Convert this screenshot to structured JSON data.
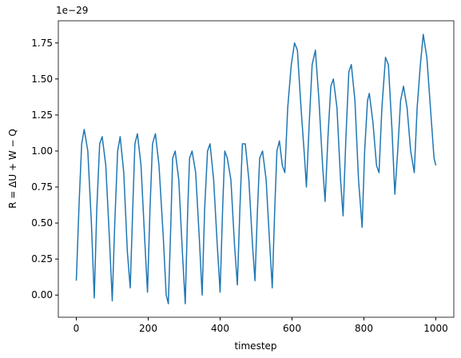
{
  "chart_data": {
    "type": "line",
    "x_label": "timestep",
    "y_label": "R = ΔU + W − Q",
    "offset_text": "1e−29",
    "xlim": [
      -50,
      1050
    ],
    "ylim": [
      -0.154,
      1.904
    ],
    "xticks": [
      0,
      200,
      400,
      600,
      800,
      1000
    ],
    "yticks": [
      {
        "value": 0,
        "label": "0.00"
      },
      {
        "value": 0.25,
        "label": "0.25"
      },
      {
        "value": 0.5,
        "label": "0.50"
      },
      {
        "value": 0.75,
        "label": "0.75"
      },
      {
        "value": 1,
        "label": "1.00"
      },
      {
        "value": 1.25,
        "label": "1.25"
      },
      {
        "value": 1.5,
        "label": "1.50"
      },
      {
        "value": 1.75,
        "label": "1.75"
      }
    ],
    "x": [
      0,
      8,
      15,
      22,
      32,
      42,
      50,
      57,
      65,
      72,
      82,
      92,
      100,
      107,
      115,
      122,
      132,
      142,
      150,
      157,
      163,
      170,
      180,
      190,
      198,
      205,
      212,
      220,
      230,
      242,
      250,
      256,
      263,
      268,
      275,
      285,
      295,
      303,
      310,
      315,
      322,
      332,
      342,
      350,
      357,
      365,
      372,
      382,
      392,
      400,
      407,
      413,
      420,
      430,
      440,
      448,
      455,
      462,
      470,
      480,
      490,
      497,
      504,
      510,
      518,
      528,
      538,
      545,
      552,
      558,
      565,
      573,
      580,
      588,
      598,
      607,
      615,
      625,
      635,
      640,
      648,
      656,
      665,
      675,
      685,
      692,
      700,
      708,
      715,
      725,
      735,
      742,
      750,
      758,
      765,
      775,
      785,
      795,
      802,
      810,
      815,
      825,
      835,
      842,
      850,
      860,
      868,
      878,
      886,
      894,
      902,
      910,
      920,
      930,
      940,
      948,
      957,
      965,
      975,
      985,
      995,
      1000
    ],
    "series": [
      {
        "color": "#1f77b4",
        "values": [
          0.1,
          0.65,
          1.05,
          1.15,
          1.0,
          0.5,
          -0.02,
          0.6,
          1.05,
          1.1,
          0.9,
          0.4,
          -0.04,
          0.5,
          1.0,
          1.1,
          0.85,
          0.3,
          0.05,
          0.6,
          1.05,
          1.12,
          0.9,
          0.4,
          0.02,
          0.6,
          1.05,
          1.12,
          0.9,
          0.4,
          0.0,
          -0.06,
          0.5,
          0.95,
          1.0,
          0.8,
          0.3,
          -0.06,
          0.6,
          0.95,
          1.0,
          0.85,
          0.4,
          0.0,
          0.6,
          1.0,
          1.05,
          0.8,
          0.35,
          0.02,
          0.6,
          1.0,
          0.95,
          0.8,
          0.35,
          0.07,
          0.6,
          1.05,
          1.05,
          0.8,
          0.35,
          0.1,
          0.6,
          0.95,
          1.0,
          0.8,
          0.35,
          0.05,
          0.6,
          1.0,
          1.07,
          0.9,
          0.85,
          1.3,
          1.6,
          1.75,
          1.7,
          1.3,
          0.95,
          0.75,
          1.2,
          1.6,
          1.7,
          1.35,
          0.9,
          0.65,
          1.1,
          1.45,
          1.5,
          1.3,
          0.8,
          0.55,
          1.1,
          1.55,
          1.6,
          1.35,
          0.8,
          0.47,
          1.0,
          1.35,
          1.4,
          1.2,
          0.9,
          0.85,
          1.3,
          1.65,
          1.6,
          1.15,
          0.7,
          1.0,
          1.35,
          1.45,
          1.3,
          1.0,
          0.85,
          1.3,
          1.6,
          1.81,
          1.65,
          1.3,
          0.95,
          0.9
        ]
      }
    ]
  }
}
